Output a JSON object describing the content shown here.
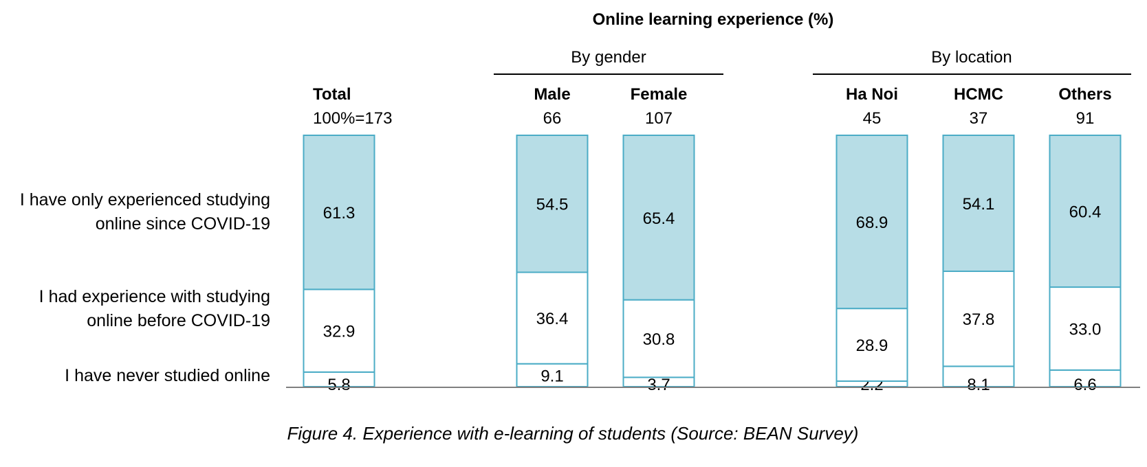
{
  "chart_data": {
    "type": "bar",
    "stacked": true,
    "title": "Online learning experience (%)",
    "caption": "Figure 4. Experience with e-learning of students (Source: BEAN Survey)",
    "groups": [
      {
        "label": "By gender",
        "categories": [
          "Male",
          "Female"
        ]
      },
      {
        "label": "By location",
        "categories": [
          "Ha Noi",
          "HCMC",
          "Others"
        ]
      }
    ],
    "categories": [
      "Total",
      "Male",
      "Female",
      "Ha Noi",
      "HCMC",
      "Others"
    ],
    "base_labels": [
      "100%=173",
      "66",
      "107",
      "45",
      "37",
      "91"
    ],
    "series": [
      {
        "name": "I have never studied online",
        "values": [
          5.8,
          9.1,
          3.7,
          2.2,
          8.1,
          6.6
        ],
        "labels": [
          "5.8",
          "9.1",
          "3.7",
          "2.2",
          "8.1",
          "6.6"
        ],
        "color": "#ffffff"
      },
      {
        "name": "I had experience with studying online before COVID-19",
        "values": [
          32.9,
          36.4,
          30.8,
          28.9,
          37.8,
          33.0
        ],
        "labels": [
          "32.9",
          "36.4",
          "30.8",
          "28.9",
          "37.8",
          "33.0"
        ],
        "color": "#ffffff"
      },
      {
        "name": "I have only experienced studying online since COVID-19",
        "values": [
          61.3,
          54.5,
          65.4,
          68.9,
          54.1,
          60.4
        ],
        "labels": [
          "61.3",
          "54.5",
          "65.4",
          "68.9",
          "54.1",
          "60.4"
        ],
        "color": "#b7dde6"
      }
    ],
    "legend_placement": "left",
    "bar_outline_color": "#4bacc6",
    "baseline_color": "#7f7f7f",
    "grid": false
  }
}
